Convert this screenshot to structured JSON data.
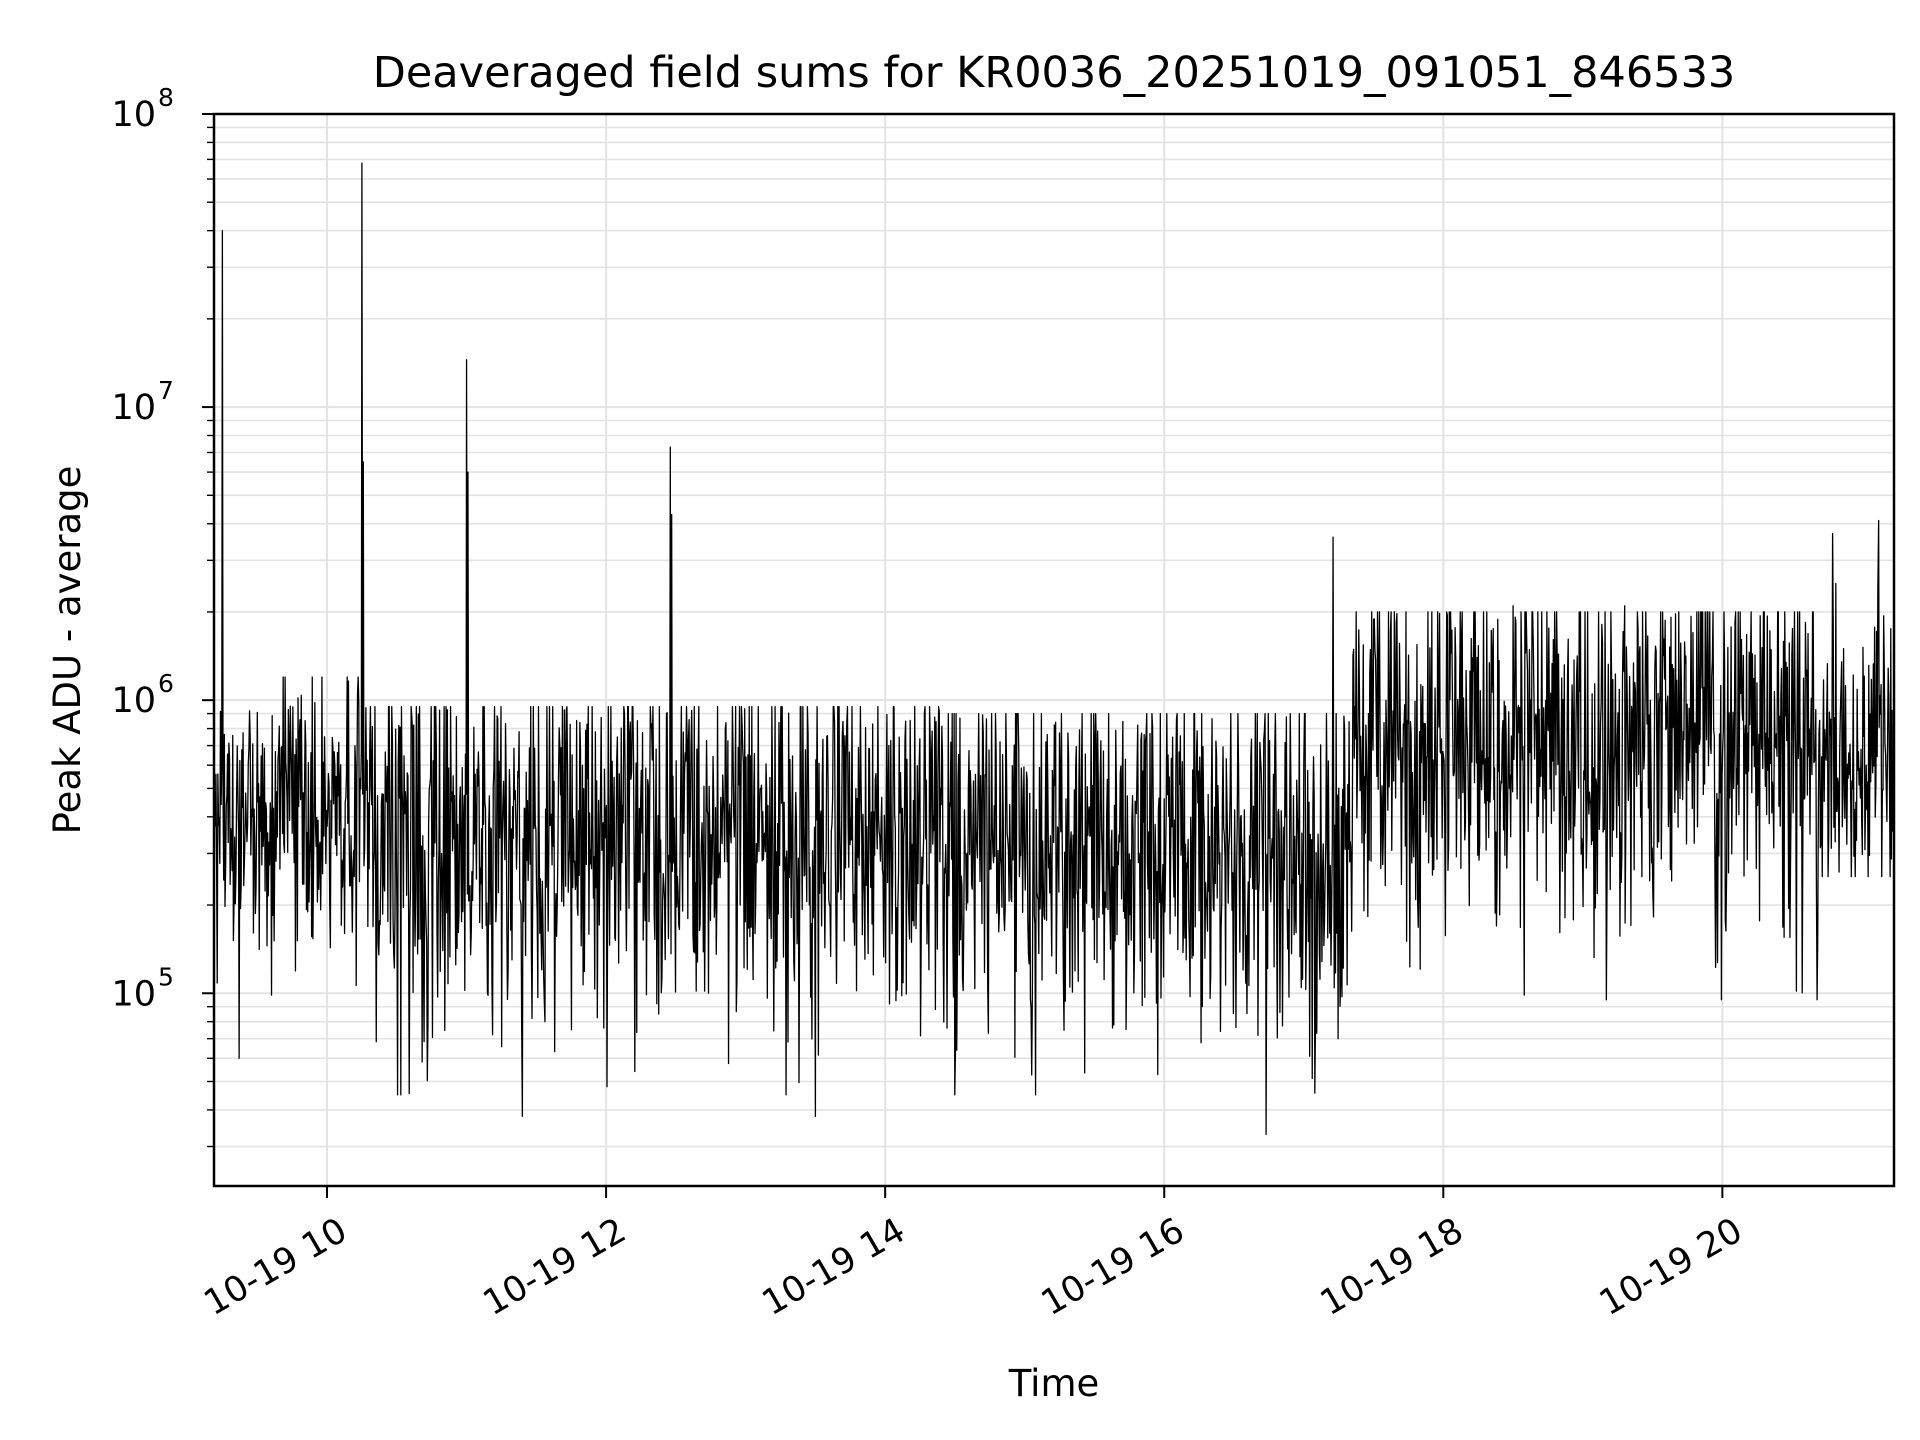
{
  "chart_data": {
    "type": "line",
    "title": "Deaveraged field sums for KR0036_20251019_091051_846533",
    "xlabel": "Time",
    "ylabel": "Peak ADU - average",
    "yscale": "log",
    "ylim": [
      22000,
      100000000
    ],
    "xlim_hours": [
      9.19,
      21.23
    ],
    "grid": true,
    "grid_minor": true,
    "line_color": "#000000",
    "grid_color": "#e3e3e3",
    "x_ticks": [
      {
        "hour": 10,
        "label": "10-19 10"
      },
      {
        "hour": 12,
        "label": "10-19 12"
      },
      {
        "hour": 14,
        "label": "10-19 14"
      },
      {
        "hour": 16,
        "label": "10-19 16"
      },
      {
        "hour": 18,
        "label": "10-19 18"
      },
      {
        "hour": 20,
        "label": "10-19 20"
      }
    ],
    "y_ticks": [
      {
        "value": 100000,
        "base": "10",
        "exp": "5"
      },
      {
        "value": 1000000,
        "base": "10",
        "exp": "6"
      },
      {
        "value": 10000000,
        "base": "10",
        "exp": "7"
      },
      {
        "value": 100000000,
        "base": "10",
        "exp": "8"
      }
    ],
    "series": [
      {
        "name": "Peak ADU - average",
        "baseline_segments": [
          {
            "start_hour": 9.19,
            "end_hour": 9.55,
            "median": 380000,
            "low": 100000,
            "high": 1100000
          },
          {
            "start_hour": 9.55,
            "end_hour": 10.3,
            "median": 450000,
            "low": 90000,
            "high": 1200000
          },
          {
            "start_hour": 10.3,
            "end_hour": 13.6,
            "median": 320000,
            "low": 45000,
            "high": 950000
          },
          {
            "start_hour": 13.6,
            "end_hour": 14.4,
            "median": 360000,
            "low": 60000,
            "high": 950000
          },
          {
            "start_hour": 14.4,
            "end_hour": 17.3,
            "median": 300000,
            "low": 45000,
            "high": 900000
          },
          {
            "start_hour": 17.3,
            "end_hour": 20.7,
            "median": 700000,
            "low": 95000,
            "high": 2000000
          },
          {
            "start_hour": 20.7,
            "end_hour": 21.23,
            "median": 600000,
            "low": 250000,
            "high": 2500000
          }
        ],
        "spikes": [
          {
            "hour": 9.25,
            "value": 40000000
          },
          {
            "hour": 10.25,
            "value": 68000000
          },
          {
            "hour": 10.26,
            "value": 6500000
          },
          {
            "hour": 11.0,
            "value": 14500000
          },
          {
            "hour": 11.01,
            "value": 6000000
          },
          {
            "hour": 12.46,
            "value": 7300000
          },
          {
            "hour": 12.47,
            "value": 4300000
          },
          {
            "hour": 17.21,
            "value": 3600000
          },
          {
            "hour": 20.79,
            "value": 3700000
          },
          {
            "hour": 21.12,
            "value": 4100000
          },
          {
            "hour": 18.5,
            "value": 2100000
          },
          {
            "hour": 19.3,
            "value": 2100000
          },
          {
            "hour": 20.3,
            "value": 2000000
          }
        ],
        "dips": [
          {
            "hour": 9.37,
            "value": 60000
          },
          {
            "hour": 11.4,
            "value": 38000
          },
          {
            "hour": 16.73,
            "value": 33000
          },
          {
            "hour": 13.5,
            "value": 38000
          }
        ]
      }
    ]
  }
}
